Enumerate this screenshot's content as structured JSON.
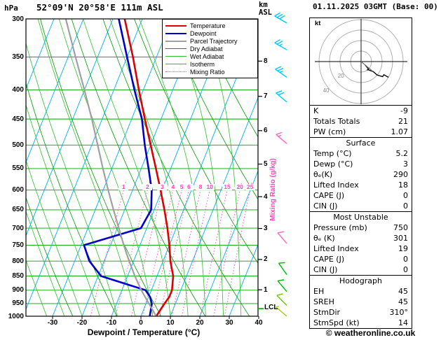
{
  "header": {
    "pressure_unit": "hPa",
    "station": "52°09'N 20°58'E 111m ASL",
    "km_unit": "km",
    "asl_unit": "ASL",
    "datetime": "01.11.2025 03GMT (Base: 00)"
  },
  "axes": {
    "pressure_ticks": [
      300,
      350,
      400,
      450,
      500,
      550,
      600,
      650,
      700,
      750,
      800,
      850,
      900,
      950,
      1000
    ],
    "temp_ticks": [
      -30,
      -20,
      -10,
      0,
      10,
      20,
      30,
      40
    ],
    "km_ticks": [
      1,
      2,
      3,
      4,
      5,
      6,
      7,
      8
    ],
    "xlabel": "Dewpoint / Temperature (°C)",
    "right_label": "Mixing Ratio (g/kg)",
    "lcl_label": "LCL"
  },
  "legend": [
    {
      "label": "Temperature",
      "color": "#dd0000",
      "style": "solid",
      "width": 2
    },
    {
      "label": "Dewpoint",
      "color": "#0000cc",
      "style": "solid",
      "width": 2
    },
    {
      "label": "Parcel Trajectory",
      "color": "#a0a0a0",
      "style": "solid",
      "width": 2
    },
    {
      "label": "Dry Adiabat",
      "color": "#009900",
      "style": "solid",
      "width": 1
    },
    {
      "label": "Wet Adiabat",
      "color": "#2fbf2f",
      "style": "solid",
      "width": 1
    },
    {
      "label": "Isotherm",
      "color": "#00b0f0",
      "style": "solid",
      "width": 1
    },
    {
      "label": "Mixing Ratio",
      "color": "#ff44bb",
      "style": "dotted",
      "width": 1
    }
  ],
  "chart_data": {
    "type": "line",
    "title": "Skew-T log-P sounding",
    "x_axis": {
      "label": "Dewpoint / Temperature (°C)",
      "ticks": [
        -30,
        -20,
        -10,
        0,
        10,
        20,
        30,
        40
      ],
      "unit": "°C"
    },
    "y_axis": {
      "label": "hPa",
      "scale": "log",
      "range": [
        300,
        1000
      ],
      "ticks": [
        300,
        350,
        400,
        450,
        500,
        550,
        600,
        650,
        700,
        750,
        800,
        850,
        900,
        950,
        1000
      ]
    },
    "km_axis": {
      "label": "km ASL",
      "ticks": [
        1,
        2,
        3,
        4,
        5,
        6,
        7,
        8
      ]
    },
    "pressure_levels": [
      1000,
      950,
      925,
      900,
      850,
      800,
      750,
      700,
      650,
      600,
      550,
      500,
      450,
      400,
      350,
      300
    ],
    "series": [
      {
        "name": "Temperature",
        "color": "#dd0000",
        "values": [
          5.2,
          6.3,
          7.0,
          7.0,
          5.5,
          2.5,
          0.0,
          -3.0,
          -6.5,
          -10.5,
          -15.0,
          -20.0,
          -25.5,
          -31.5,
          -38.0,
          -46.0
        ]
      },
      {
        "name": "Dewpoint",
        "color": "#0000cc",
        "values": [
          3.0,
          2.0,
          0.5,
          -2.0,
          -19.0,
          -25.0,
          -29.0,
          -12.0,
          -11.0,
          -13.5,
          -17.5,
          -22.0,
          -26.5,
          -33.0,
          -40.0,
          -48.0
        ]
      },
      {
        "name": "Parcel Trajectory",
        "color": "#a0a0a0",
        "values": [
          5.2,
          1.0,
          -1.2,
          -3.4,
          -7.5,
          -11.5,
          -15.5,
          -19.5,
          -23.8,
          -28.3,
          -33.0,
          -38.0,
          -43.5,
          -50.0,
          -57.5,
          -66.0
        ]
      }
    ],
    "mixing_ratio_lines_g_kg": [
      1,
      2,
      3,
      4,
      5,
      6,
      8,
      10,
      15,
      20,
      25
    ],
    "lcl_pressure": 970,
    "wind_barbs": [
      {
        "pressure": 305,
        "speed_kt": 30,
        "direction_deg": 300,
        "color": "#00c8ff"
      },
      {
        "pressure": 340,
        "speed_kt": 25,
        "direction_deg": 300,
        "color": "#00c8ff"
      },
      {
        "pressure": 380,
        "speed_kt": 25,
        "direction_deg": 305,
        "color": "#00c8ff"
      },
      {
        "pressure": 420,
        "speed_kt": 20,
        "direction_deg": 310,
        "color": "#00c8ff"
      },
      {
        "pressure": 497,
        "speed_kt": 15,
        "direction_deg": 310,
        "color": "#ff64c8"
      },
      {
        "pressure": 745,
        "speed_kt": 10,
        "direction_deg": 320,
        "color": "#ff64c8"
      },
      {
        "pressure": 845,
        "speed_kt": 10,
        "direction_deg": 325,
        "color": "#00bb00"
      },
      {
        "pressure": 905,
        "speed_kt": 10,
        "direction_deg": 320,
        "color": "#00bb00"
      },
      {
        "pressure": 957,
        "speed_kt": 10,
        "direction_deg": 315,
        "color": "#64c800"
      },
      {
        "pressure": 1000,
        "speed_kt": 5,
        "direction_deg": 310,
        "color": "#a0d200"
      }
    ]
  },
  "hodograph": {
    "unit_label": "kt",
    "rings_kt": [
      10,
      20,
      30,
      40
    ],
    "ring_labels": [
      "20",
      "40"
    ],
    "storm_motion": {
      "dir_deg": 310,
      "speed_kt": 14
    },
    "trace_uv_kt": [
      [
        3.8,
        -3.2
      ],
      [
        7.1,
        -7.1
      ],
      [
        6.4,
        -7.7
      ],
      [
        5.7,
        -8.2
      ],
      [
        6.4,
        -7.7
      ],
      [
        11.5,
        -9.6
      ],
      [
        15.3,
        -12.9
      ],
      [
        20.5,
        -14.3
      ],
      [
        21.7,
        -12.5
      ],
      [
        26.0,
        -15.0
      ]
    ]
  },
  "stats": {
    "sections": [
      {
        "header": null,
        "rows": [
          [
            "K",
            "-9"
          ],
          [
            "Totals Totals",
            "21"
          ],
          [
            "PW (cm)",
            "1.07"
          ]
        ]
      },
      {
        "header": "Surface",
        "rows": [
          [
            "Temp (°C)",
            "5.2"
          ],
          [
            "Dewp (°C)",
            "3"
          ],
          [
            "θₑ(K)",
            "290"
          ],
          [
            "Lifted Index",
            "18"
          ],
          [
            "CAPE (J)",
            "0"
          ],
          [
            "CIN (J)",
            "0"
          ]
        ]
      },
      {
        "header": "Most Unstable",
        "rows": [
          [
            "Pressure (mb)",
            "750"
          ],
          [
            "θₑ (K)",
            "301"
          ],
          [
            "Lifted Index",
            "19"
          ],
          [
            "CAPE (J)",
            "0"
          ],
          [
            "CIN (J)",
            "0"
          ]
        ]
      },
      {
        "header": "Hodograph",
        "rows": [
          [
            "EH",
            "45"
          ],
          [
            "SREH",
            "45"
          ],
          [
            "StmDir",
            "310°"
          ],
          [
            "StmSpd (kt)",
            "14"
          ]
        ]
      }
    ]
  },
  "footer": {
    "copyright": "© weatheronline.co.uk"
  }
}
